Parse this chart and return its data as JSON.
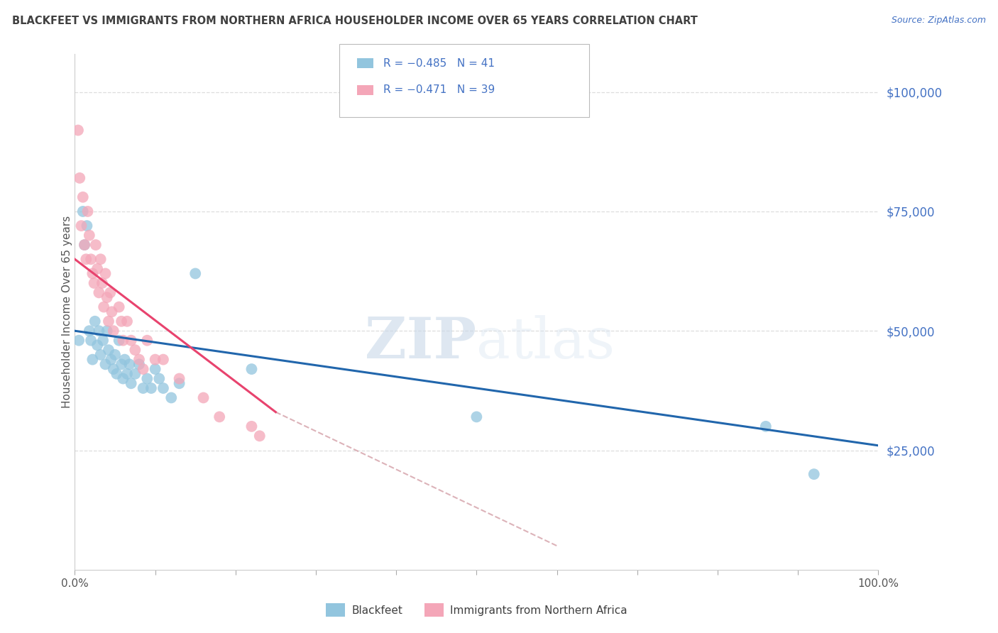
{
  "title": "BLACKFEET VS IMMIGRANTS FROM NORTHERN AFRICA HOUSEHOLDER INCOME OVER 65 YEARS CORRELATION CHART",
  "source": "Source: ZipAtlas.com",
  "ylabel": "Householder Income Over 65 years",
  "ylabel_right_labels": [
    "$25,000",
    "$50,000",
    "$75,000",
    "$100,000"
  ],
  "ylabel_right_values": [
    25000,
    50000,
    75000,
    100000
  ],
  "watermark_zip": "ZIP",
  "watermark_atlas": "atlas",
  "legend1_label": "R = −0.485   N = 41",
  "legend2_label": "R = −0.471   N = 39",
  "legend_bottom1": "Blackfeet",
  "legend_bottom2": "Immigrants from Northern Africa",
  "blue_color": "#92c5de",
  "pink_color": "#f4a6b8",
  "blue_line_color": "#2166ac",
  "pink_line_color": "#e8436e",
  "dashed_line_color": "#d4a0a8",
  "title_color": "#404040",
  "right_label_color": "#4472c4",
  "axis_tick_color": "#aaaaaa",
  "blue_scatter": [
    [
      0.005,
      48000
    ],
    [
      0.01,
      75000
    ],
    [
      0.012,
      68000
    ],
    [
      0.015,
      72000
    ],
    [
      0.018,
      50000
    ],
    [
      0.02,
      48000
    ],
    [
      0.022,
      44000
    ],
    [
      0.025,
      52000
    ],
    [
      0.028,
      47000
    ],
    [
      0.03,
      50000
    ],
    [
      0.032,
      45000
    ],
    [
      0.035,
      48000
    ],
    [
      0.038,
      43000
    ],
    [
      0.04,
      50000
    ],
    [
      0.042,
      46000
    ],
    [
      0.045,
      44000
    ],
    [
      0.048,
      42000
    ],
    [
      0.05,
      45000
    ],
    [
      0.052,
      41000
    ],
    [
      0.055,
      48000
    ],
    [
      0.058,
      43000
    ],
    [
      0.06,
      40000
    ],
    [
      0.062,
      44000
    ],
    [
      0.065,
      41000
    ],
    [
      0.068,
      43000
    ],
    [
      0.07,
      39000
    ],
    [
      0.075,
      41000
    ],
    [
      0.08,
      43000
    ],
    [
      0.085,
      38000
    ],
    [
      0.09,
      40000
    ],
    [
      0.095,
      38000
    ],
    [
      0.1,
      42000
    ],
    [
      0.105,
      40000
    ],
    [
      0.11,
      38000
    ],
    [
      0.12,
      36000
    ],
    [
      0.13,
      39000
    ],
    [
      0.15,
      62000
    ],
    [
      0.22,
      42000
    ],
    [
      0.5,
      32000
    ],
    [
      0.86,
      30000
    ],
    [
      0.92,
      20000
    ]
  ],
  "pink_scatter": [
    [
      0.004,
      92000
    ],
    [
      0.006,
      82000
    ],
    [
      0.008,
      72000
    ],
    [
      0.01,
      78000
    ],
    [
      0.012,
      68000
    ],
    [
      0.014,
      65000
    ],
    [
      0.016,
      75000
    ],
    [
      0.018,
      70000
    ],
    [
      0.02,
      65000
    ],
    [
      0.022,
      62000
    ],
    [
      0.024,
      60000
    ],
    [
      0.026,
      68000
    ],
    [
      0.028,
      63000
    ],
    [
      0.03,
      58000
    ],
    [
      0.032,
      65000
    ],
    [
      0.034,
      60000
    ],
    [
      0.036,
      55000
    ],
    [
      0.038,
      62000
    ],
    [
      0.04,
      57000
    ],
    [
      0.042,
      52000
    ],
    [
      0.044,
      58000
    ],
    [
      0.046,
      54000
    ],
    [
      0.048,
      50000
    ],
    [
      0.055,
      55000
    ],
    [
      0.058,
      52000
    ],
    [
      0.06,
      48000
    ],
    [
      0.065,
      52000
    ],
    [
      0.07,
      48000
    ],
    [
      0.075,
      46000
    ],
    [
      0.08,
      44000
    ],
    [
      0.085,
      42000
    ],
    [
      0.09,
      48000
    ],
    [
      0.1,
      44000
    ],
    [
      0.11,
      44000
    ],
    [
      0.13,
      40000
    ],
    [
      0.16,
      36000
    ],
    [
      0.18,
      32000
    ],
    [
      0.22,
      30000
    ],
    [
      0.23,
      28000
    ]
  ],
  "blue_trendline": [
    [
      0.0,
      50000
    ],
    [
      1.0,
      26000
    ]
  ],
  "pink_trendline": [
    [
      0.0,
      65000
    ],
    [
      0.25,
      33000
    ]
  ],
  "dashed_trendline": [
    [
      0.25,
      33000
    ],
    [
      0.6,
      5000
    ]
  ],
  "xmin": 0.0,
  "xmax": 1.0,
  "ymin": 0,
  "ymax": 108000
}
